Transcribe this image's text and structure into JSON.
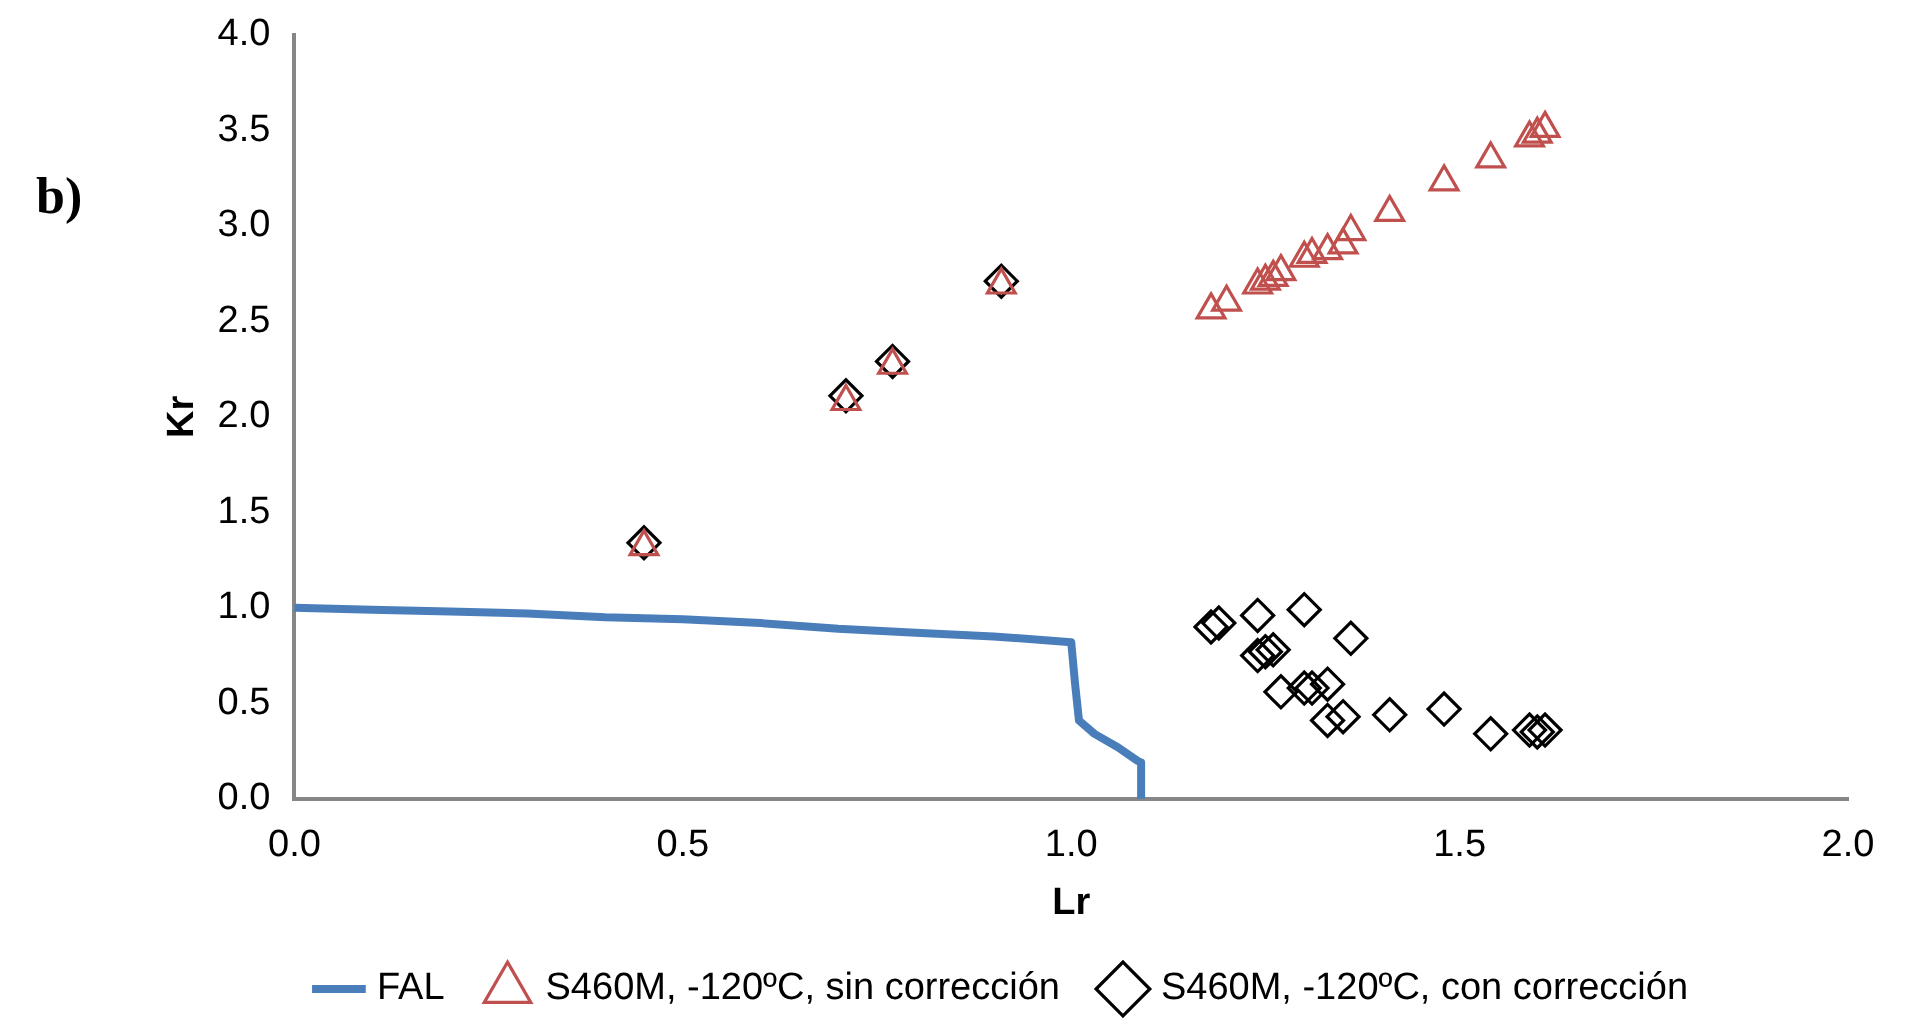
{
  "chart_data": {
    "type": "scatter",
    "xlabel": "Lr",
    "ylabel": "Kr",
    "annotations": [
      "b)"
    ],
    "xlim": [
      0,
      2
    ],
    "xticks": [
      {
        "value": 0,
        "label": "0.0"
      },
      {
        "value": 0.5,
        "label": "0.5"
      },
      {
        "value": 1,
        "label": "1.0"
      },
      {
        "value": 1.5,
        "label": "1.5"
      },
      {
        "value": 2,
        "label": "2.0"
      }
    ],
    "ylim": [
      0,
      4
    ],
    "yticks": [
      {
        "value": 0,
        "label": "0.0"
      },
      {
        "value": 0.5,
        "label": "0.5"
      },
      {
        "value": 1,
        "label": "1.0"
      },
      {
        "value": 1.5,
        "label": "1.5"
      },
      {
        "value": 2,
        "label": "2.0"
      },
      {
        "value": 2.5,
        "label": "2.5"
      },
      {
        "value": 3,
        "label": "3.0"
      },
      {
        "value": 3.5,
        "label": "3.5"
      },
      {
        "value": 4,
        "label": "4.0"
      }
    ],
    "grid": false,
    "legend": "bottom",
    "series": [
      {
        "name": "FAL",
        "type": "line",
        "marker": "none",
        "line_style": "solid",
        "color": "#4a7ebb",
        "x": [
          0,
          0.1,
          0.2,
          0.3,
          0.4,
          0.5,
          0.6,
          0.7,
          0.8,
          0.9,
          1.0,
          1.005,
          1.01,
          1.03,
          1.06,
          1.085,
          1.09,
          1.09
        ],
        "values": [
          1.0,
          0.99,
          0.98,
          0.97,
          0.95,
          0.94,
          0.92,
          0.89,
          0.87,
          0.85,
          0.82,
          0.6,
          0.41,
          0.34,
          0.27,
          0.2,
          0.19,
          0
        ]
      },
      {
        "name": "S460M, -120ºC, sin corrección",
        "marker": "triangle",
        "color": "#c0504d",
        "x": [
          0.45,
          0.71,
          0.77,
          0.91,
          1.18,
          1.2,
          1.24,
          1.25,
          1.26,
          1.27,
          1.3,
          1.31,
          1.33,
          1.35,
          1.36,
          1.41,
          1.48,
          1.54,
          1.59,
          1.6,
          1.61
        ],
        "values": [
          1.32,
          2.08,
          2.27,
          2.69,
          2.56,
          2.6,
          2.69,
          2.71,
          2.73,
          2.76,
          2.83,
          2.85,
          2.87,
          2.9,
          2.97,
          3.07,
          3.23,
          3.35,
          3.46,
          3.48,
          3.51
        ]
      },
      {
        "name": "S460M, -120ºC, con corrección",
        "marker": "diamond",
        "color": "#000000",
        "x": [
          0.45,
          0.71,
          0.77,
          0.91,
          1.18,
          1.19,
          1.24,
          1.3,
          1.24,
          1.25,
          1.26,
          1.36,
          1.27,
          1.3,
          1.31,
          1.33,
          1.33,
          1.35,
          1.41,
          1.48,
          1.54,
          1.59,
          1.6,
          1.61
        ],
        "values": [
          1.34,
          2.11,
          2.29,
          2.71,
          0.9,
          0.92,
          0.96,
          0.99,
          0.75,
          0.77,
          0.78,
          0.84,
          0.56,
          0.58,
          0.58,
          0.6,
          0.41,
          0.43,
          0.44,
          0.47,
          0.34,
          0.36,
          0.35,
          0.36
        ]
      }
    ]
  }
}
